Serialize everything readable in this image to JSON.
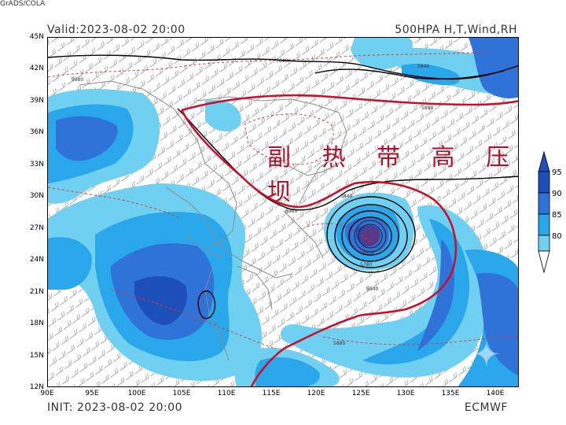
{
  "header": {
    "valid": "Valid:2023-08-02 20:00",
    "product": "500HPA H,T,Wind,RH",
    "init": "INIT: 2023-08-02 20:00",
    "model": "ECMWF",
    "credit": "GrADS/COLA"
  },
  "map": {
    "annotation": "副 热 带 高 压 坝",
    "lat_labels": [
      "45N",
      "42N",
      "39N",
      "36N",
      "33N",
      "30N",
      "27N",
      "24N",
      "21N",
      "18N",
      "15N",
      "12N"
    ],
    "lon_labels": [
      "90E",
      "95E",
      "100E",
      "105E",
      "110E",
      "115E",
      "120E",
      "125E",
      "130E",
      "135E",
      "140E"
    ],
    "contour_labels": [
      "5840",
      "5840",
      "5880",
      "5880",
      "5840",
      "5780",
      "5840",
      "5880",
      "5880",
      "5820"
    ],
    "colors": {
      "rh_80": "#6fd0f2",
      "rh_85": "#2aa7ea",
      "rh_90": "#2f72d8",
      "rh_95": "#1d4fb8",
      "subtropical_high_line": "#c8102e",
      "height_line": "#000000",
      "boundary_line": "#d23a3a",
      "wind_barb": "#888888"
    }
  },
  "colorbar": {
    "labels": [
      "95",
      "90",
      "85",
      "80"
    ]
  }
}
